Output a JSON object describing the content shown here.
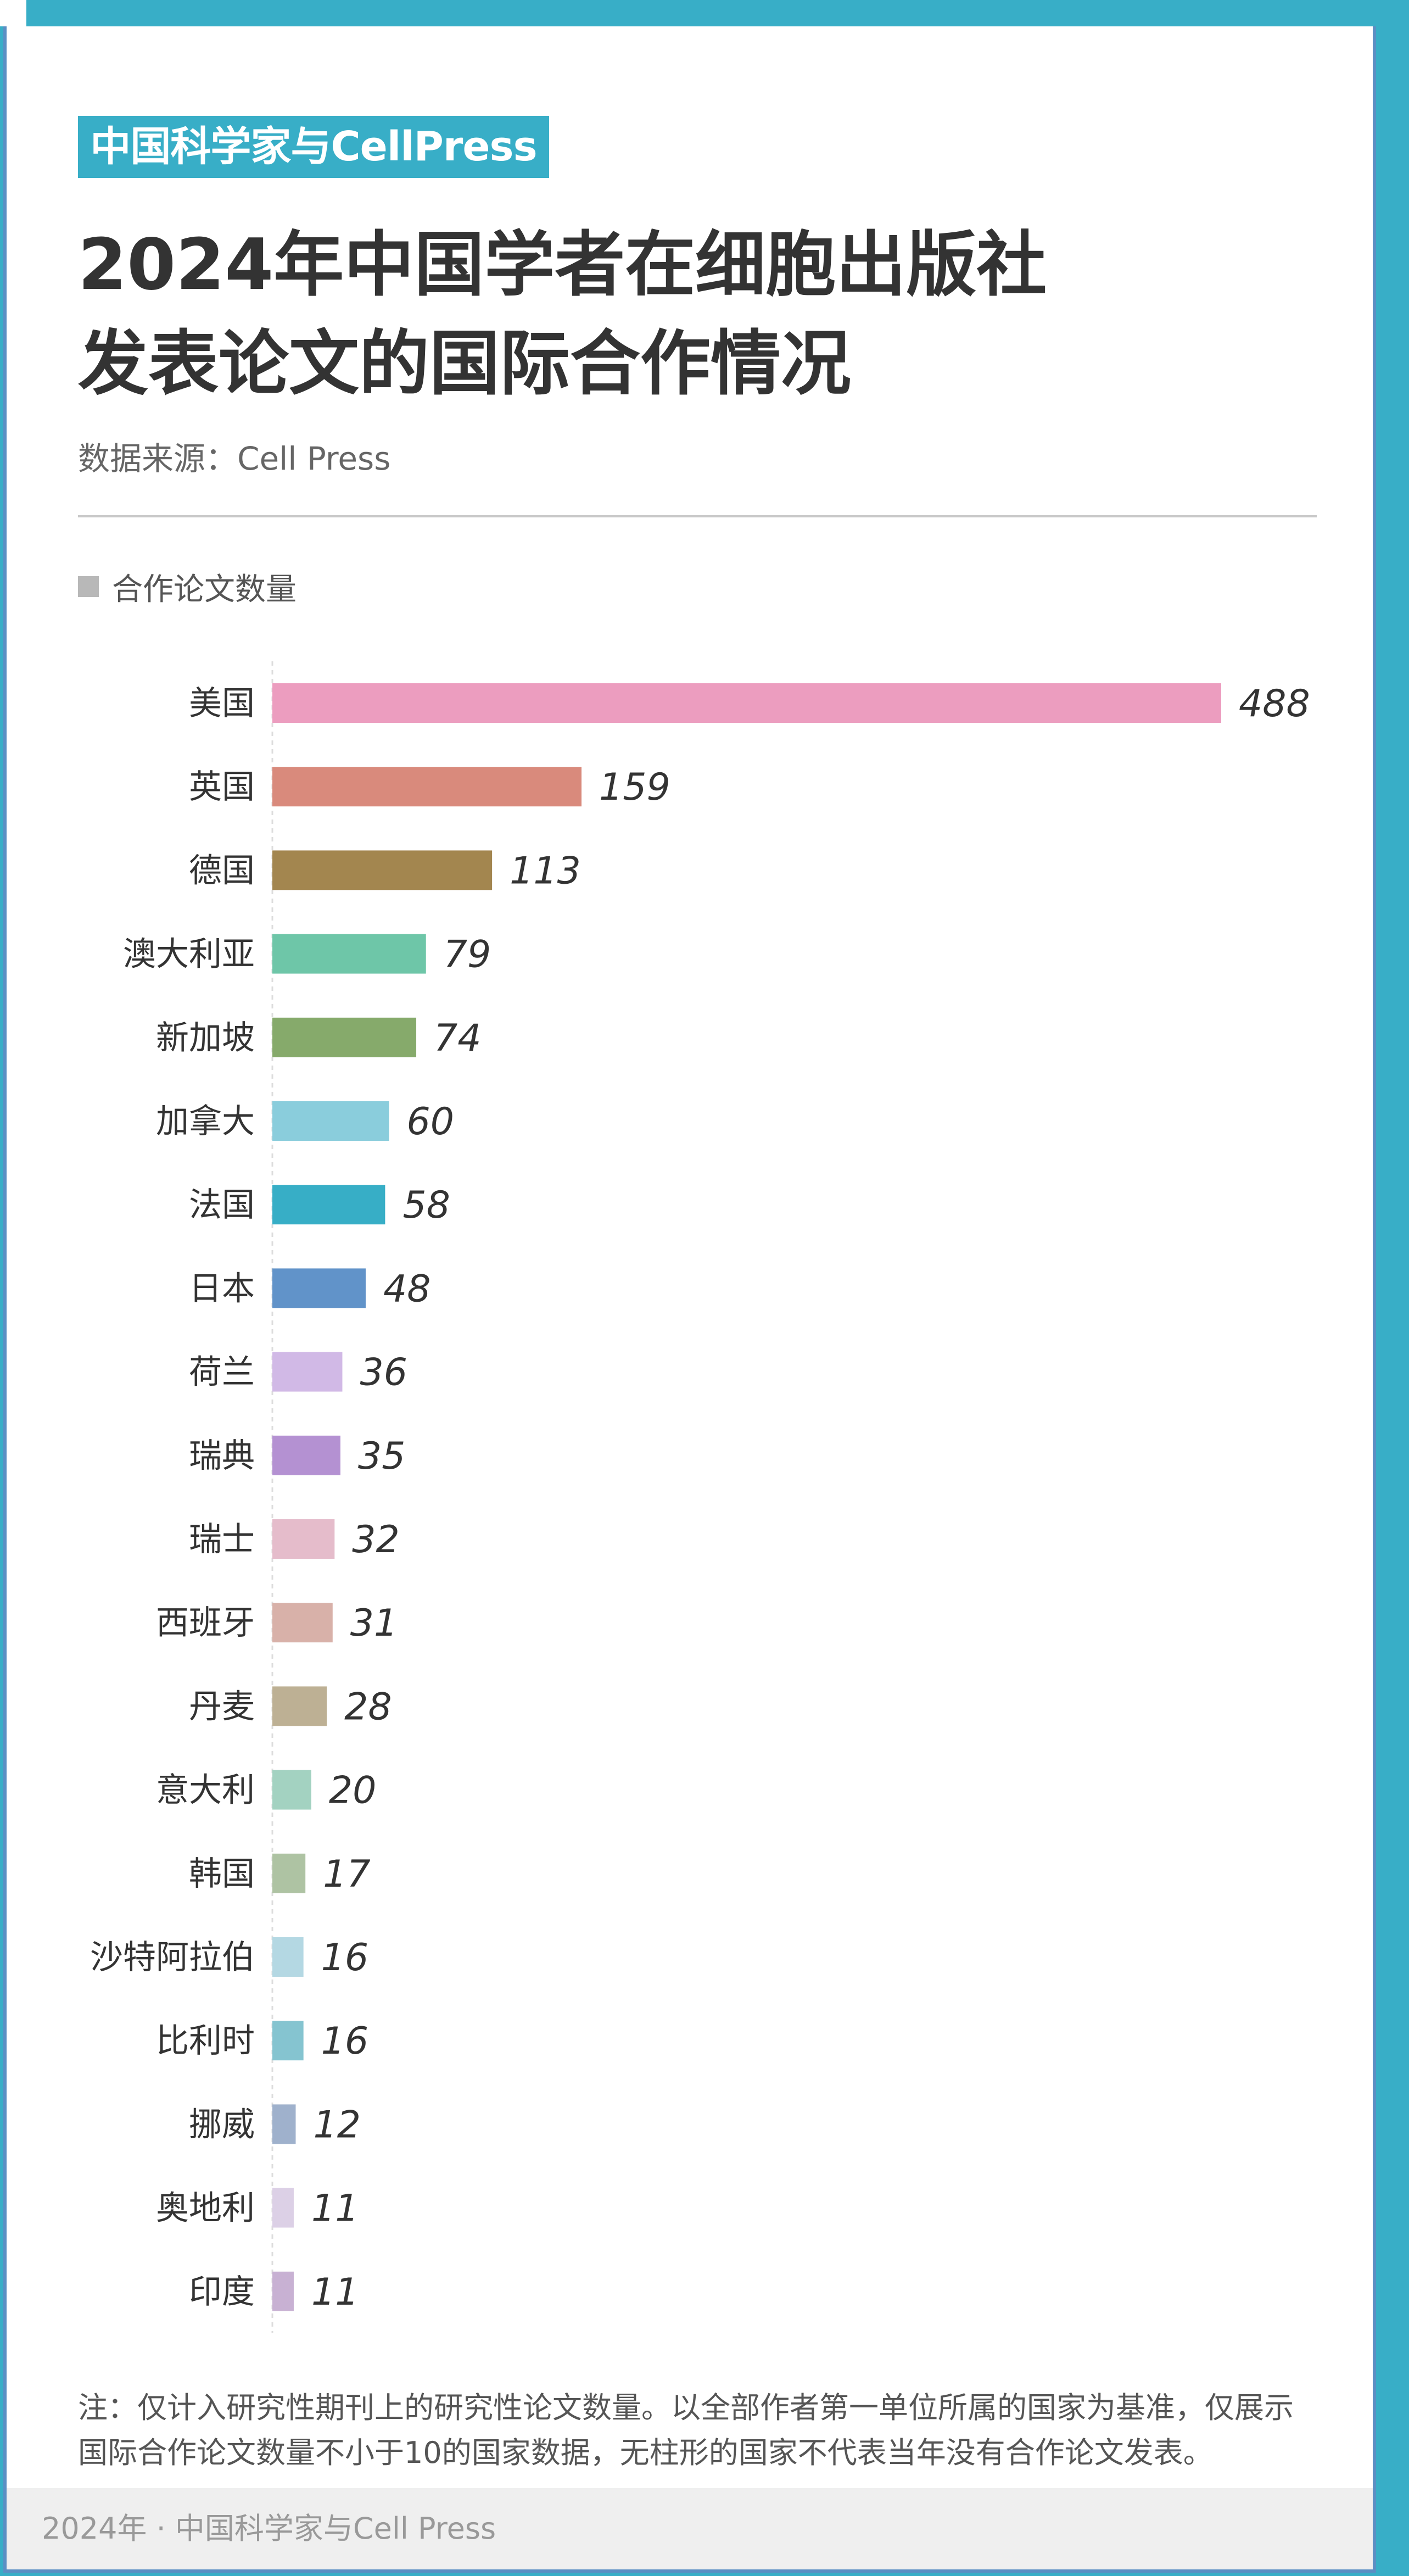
{
  "brand_tag": "中国科学家与CellPress",
  "title_line1": "2024年中国学者在细胞出版社",
  "title_line2": "发表论文的国际合作情况",
  "source": "数据来源：Cell Press",
  "legend_label": "合作论文数量",
  "note": "注：仅计入研究性期刊上的研究性论文数量。以全部作者第一单位所属的国家为基准，仅展示国际合作论文数量不小于10的国家数据，无柱形的国家不代表当年没有合作论文发表。",
  "footer": "2024年 · 中国科学家与Cell Press",
  "chart_data": {
    "type": "bar",
    "orientation": "horizontal",
    "title": "2024年中国学者在细胞出版社发表论文的国际合作情况",
    "categories": [
      "美国",
      "英国",
      "德国",
      "澳大利亚",
      "新加坡",
      "加拿大",
      "法国",
      "日本",
      "荷兰",
      "瑞典",
      "瑞士",
      "西班牙",
      "丹麦",
      "意大利",
      "韩国",
      "沙特阿拉伯",
      "比利时",
      "挪威",
      "奥地利",
      "印度"
    ],
    "series": [
      {
        "name": "合作论文数量",
        "values": [
          488,
          159,
          113,
          79,
          74,
          60,
          58,
          48,
          36,
          35,
          32,
          31,
          28,
          20,
          17,
          16,
          16,
          12,
          11,
          11
        ]
      }
    ],
    "colors": [
      "#ec9dbf",
      "#d98a7c",
      "#a3864f",
      "#6ec6a8",
      "#86aa6b",
      "#8acddc",
      "#37aec6",
      "#6193c9",
      "#d1b9e6",
      "#b491d2",
      "#e5bccb",
      "#d8b1a9",
      "#bdb094",
      "#a3d2c1",
      "#aec3a3",
      "#b4d8e3",
      "#85c4d0",
      "#9fb1cc",
      "#dcd0e6",
      "#c8b1d3"
    ],
    "xlim": [
      0,
      488
    ],
    "legend": "top-left",
    "grid": false
  }
}
